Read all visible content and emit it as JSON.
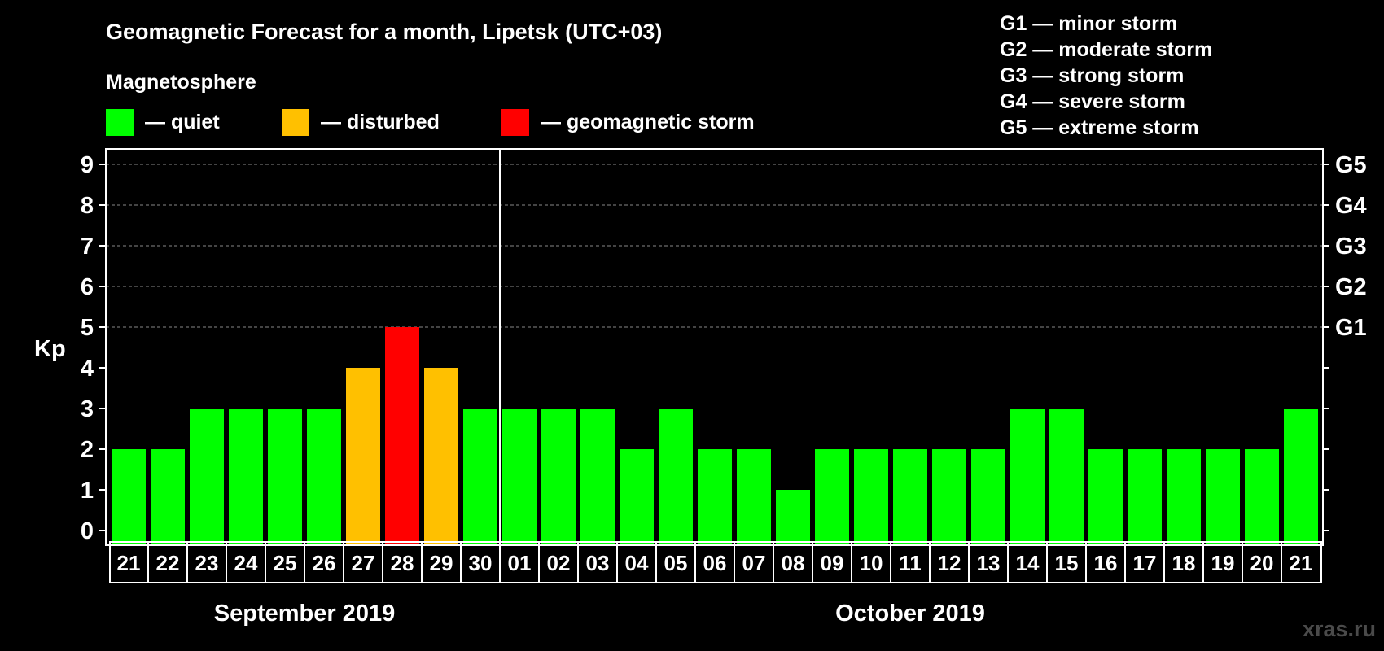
{
  "chart_data": {
    "type": "bar",
    "title": "Geomagnetic Forecast for a month, Lipetsk (UTC+03)",
    "legend_heading": "Magnetosphere",
    "legend": [
      {
        "label": "— quiet",
        "color": "#00ff00"
      },
      {
        "label": "— disturbed",
        "color": "#ffc000"
      },
      {
        "label": "— geomagnetic storm",
        "color": "#ff0000"
      }
    ],
    "storm_scale": [
      "G1 — minor storm",
      "G2 — moderate storm",
      "G3 — strong storm",
      "G4 — severe storm",
      "G5 — extreme storm"
    ],
    "ylabel": "Kp",
    "ylim": [
      0,
      9
    ],
    "yticks": [
      "0",
      "1",
      "2",
      "3",
      "4",
      "5",
      "6",
      "7",
      "8",
      "9"
    ],
    "right_axis": [
      {
        "kp": 5,
        "label": "G1"
      },
      {
        "kp": 6,
        "label": "G2"
      },
      {
        "kp": 7,
        "label": "G3"
      },
      {
        "kp": 8,
        "label": "G4"
      },
      {
        "kp": 9,
        "label": "G5"
      }
    ],
    "grid": "dashed horizontal at Kp 5–9",
    "categories": [
      "21",
      "22",
      "23",
      "24",
      "25",
      "26",
      "27",
      "28",
      "29",
      "30",
      "01",
      "02",
      "03",
      "04",
      "05",
      "06",
      "07",
      "08",
      "09",
      "10",
      "11",
      "12",
      "13",
      "14",
      "15",
      "16",
      "17",
      "18",
      "19",
      "20",
      "21"
    ],
    "values": [
      2,
      2,
      3,
      3,
      3,
      3,
      4,
      5,
      4,
      3,
      3,
      3,
      3,
      2,
      3,
      2,
      2,
      1,
      2,
      2,
      2,
      2,
      2,
      3,
      3,
      2,
      2,
      2,
      2,
      2,
      3
    ],
    "colors": [
      "#00ff00",
      "#00ff00",
      "#00ff00",
      "#00ff00",
      "#00ff00",
      "#00ff00",
      "#ffc000",
      "#ff0000",
      "#ffc000",
      "#00ff00",
      "#00ff00",
      "#00ff00",
      "#00ff00",
      "#00ff00",
      "#00ff00",
      "#00ff00",
      "#00ff00",
      "#00ff00",
      "#00ff00",
      "#00ff00",
      "#00ff00",
      "#00ff00",
      "#00ff00",
      "#00ff00",
      "#00ff00",
      "#00ff00",
      "#00ff00",
      "#00ff00",
      "#00ff00",
      "#00ff00",
      "#00ff00"
    ],
    "months": [
      {
        "label": "September 2019",
        "first_index": 0,
        "last_index": 9
      },
      {
        "label": "October 2019",
        "first_index": 10,
        "last_index": 30
      }
    ]
  },
  "watermark": "xras.ru"
}
